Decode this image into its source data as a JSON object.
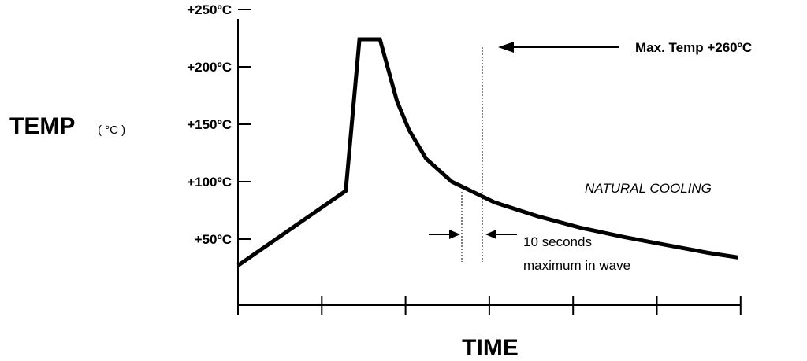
{
  "chart_data": {
    "type": "line",
    "title": "",
    "ylabel": "TEMP",
    "ylabel_unit": "( °C )",
    "xlabel": "TIME",
    "y_ticks": [
      "+250ºC",
      "+200ºC",
      "+150ºC",
      "+100ºC",
      "+50ºC"
    ],
    "y_tick_values": [
      250,
      200,
      150,
      100,
      50
    ],
    "ylim": [
      0,
      250
    ],
    "x_tick_count": 7,
    "grid": false,
    "series": [
      {
        "x": [
          0,
          1.26,
          1.42,
          1.66,
          1.86,
          2.0,
          2.2,
          2.5,
          3.0,
          3.5,
          4.0,
          4.5,
          5.0,
          5.5,
          5.85
        ],
        "y": [
          27,
          92,
          224,
          224,
          170,
          145,
          120,
          100,
          82,
          70,
          60,
          52,
          45,
          38,
          34
        ]
      }
    ],
    "annotations": {
      "max_temp": "Max. Temp +260ºC",
      "cooling": "NATURAL COOLING",
      "wave_line1": "10 seconds",
      "wave_line2": "maximum in wave"
    }
  }
}
